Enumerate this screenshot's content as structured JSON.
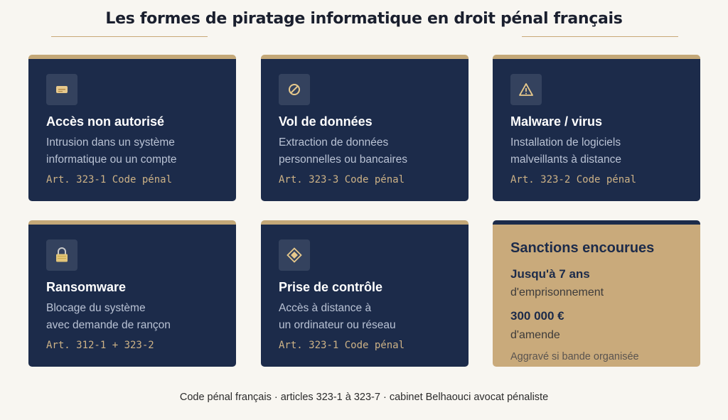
{
  "title": "Les formes de piratage informatique en droit pénal français",
  "cards": [
    {
      "icon": "keycard-icon",
      "title": "Accès non autorisé",
      "desc_line1": "Intrusion dans un système",
      "desc_line2": "informatique ou un compte",
      "law": "Art. 323-1 Code pénal"
    },
    {
      "icon": "prohibited-icon",
      "title": "Vol de données",
      "desc_line1": "Extraction de données",
      "desc_line2": "personnelles ou bancaires",
      "law": "Art. 323-3 Code pénal"
    },
    {
      "icon": "warning-icon",
      "title": "Malware / virus",
      "desc_line1": "Installation de logiciels",
      "desc_line2": "malveillants à distance",
      "law": "Art. 323-2 Code pénal"
    },
    {
      "icon": "lock-icon",
      "title": "Ransomware",
      "desc_line1": "Blocage du système",
      "desc_line2": "avec demande de rançon",
      "law": "Art. 312-1 + 323-2"
    },
    {
      "icon": "diamond-icon",
      "title": "Prise de contrôle",
      "desc_line1": "Accès à distance à",
      "desc_line2": "un ordinateur ou réseau",
      "law": "Art. 323-1 Code pénal"
    }
  ],
  "sanctions": {
    "title": "Sanctions encourues",
    "prison_value": "Jusqu'à 7 ans",
    "prison_label": "d'emprisonnement",
    "fine_value": "300 000 €",
    "fine_label": "d'amende",
    "note": "Aggravé si bande organisée"
  },
  "footer": "Code pénal français · articles 323-1 à 323-7 · cabinet Belhaouci avocat pénaliste",
  "colors": {
    "navy": "#1c2b4a",
    "gold": "#c4a878",
    "background": "#f8f6f1"
  }
}
